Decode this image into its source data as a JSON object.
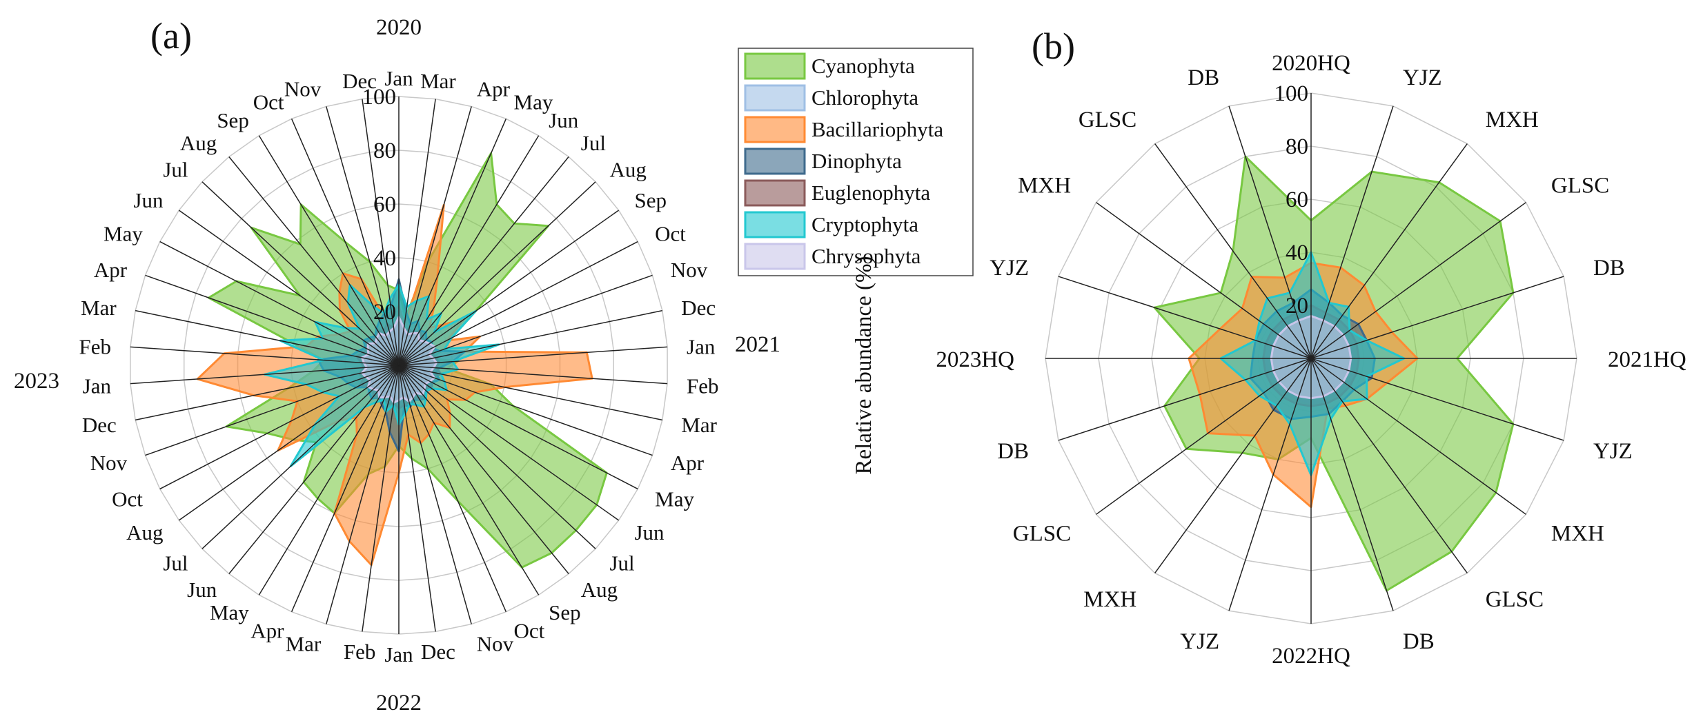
{
  "figure": {
    "ylabel": "Relative abundance (%)",
    "colors": {
      "Cyanophyta": "#78c841",
      "Chlorophyta": "#9fbfe4",
      "Bacillariophyta": "#ff8a33",
      "Dinophyta": "#3e6a8c",
      "Euglenophyta": "#8a5a5a",
      "Cryptophyta": "#22c8d0",
      "Chrysophyta": "#c9c6ea"
    }
  },
  "legend": {
    "items": [
      "Cyanophyta",
      "Chlorophyta",
      "Bacillariophyta",
      "Dinophyta",
      "Euglenophyta",
      "Cryptophyta",
      "Chrysophyta"
    ]
  },
  "chart_data": [
    {
      "type": "radar",
      "title": "(a)",
      "rlim": [
        0,
        100
      ],
      "r_ticks": [
        "20",
        "40",
        "60",
        "80",
        "100"
      ],
      "year_labels": [
        "2020",
        "2021",
        "2022",
        "2023"
      ],
      "categories": [
        "Jan",
        "Mar",
        "Apr",
        "May",
        "Jun",
        "Jul",
        "Aug",
        "Sep",
        "Oct",
        "Nov",
        "Dec",
        "Jan",
        "Feb",
        "Mar",
        "Apr",
        "May",
        "Jun",
        "Jul",
        "Aug",
        "Sep",
        "Oct",
        "Nov",
        "Dec",
        "Jan",
        "Feb",
        "Mar",
        "Apr",
        "May",
        "Jun",
        "Jul",
        "Aug",
        "Oct",
        "Nov",
        "Dec",
        "Jan",
        "Feb",
        "Mar",
        "Apr",
        "May",
        "Jun",
        "Jul",
        "Aug",
        "Sep",
        "Oct",
        "Nov",
        "Dec"
      ],
      "series": [
        {
          "name": "Cyanophyta",
          "values": [
            28,
            18,
            40,
            86,
            70,
            68,
            76,
            35,
            22,
            18,
            12,
            22,
            18,
            35,
            45,
            87,
            90,
            90,
            90,
            88,
            55,
            40,
            35,
            30,
            38,
            42,
            60,
            58,
            56,
            42,
            48,
            55,
            68,
            42,
            32,
            28,
            40,
            75,
            68,
            45,
            75,
            58,
            70,
            50,
            40,
            30
          ]
        },
        {
          "name": "Chlorophyta",
          "values": [
            14,
            12,
            12,
            14,
            13,
            12,
            15,
            14,
            13,
            12,
            12,
            12,
            13,
            14,
            12,
            13,
            14,
            15,
            14,
            13,
            13,
            12,
            13,
            14,
            12,
            14,
            13,
            12,
            14,
            16,
            14,
            13,
            12,
            14,
            12,
            13,
            12,
            14,
            13,
            12,
            13,
            12,
            12,
            13,
            12,
            14
          ]
        },
        {
          "name": "Bacillariophyta",
          "values": [
            22,
            15,
            62,
            36,
            25,
            18,
            22,
            30,
            20,
            32,
            25,
            70,
            72,
            40,
            30,
            28,
            22,
            26,
            30,
            25,
            28,
            30,
            26,
            40,
            75,
            68,
            60,
            30,
            25,
            30,
            55,
            45,
            40,
            55,
            75,
            65,
            35,
            32,
            25,
            22,
            30,
            35,
            40,
            35,
            18,
            20
          ]
        },
        {
          "name": "Dinophyta",
          "values": [
            32,
            20,
            16,
            18,
            15,
            16,
            14,
            15,
            14,
            16,
            25,
            20,
            15,
            14,
            16,
            14,
            15,
            14,
            16,
            15,
            14,
            16,
            15,
            32,
            25,
            18,
            16,
            14,
            16,
            15,
            14,
            18,
            20,
            22,
            28,
            30,
            18,
            16,
            14,
            16,
            15,
            14,
            16,
            18,
            20,
            22
          ]
        },
        {
          "name": "Euglenophyta",
          "values": [
            16,
            13,
            14,
            13,
            15,
            14,
            13,
            14,
            15,
            13,
            14,
            15,
            14,
            16,
            13,
            14,
            15,
            13,
            14,
            15,
            13,
            14,
            15,
            16,
            14,
            15,
            13,
            14,
            15,
            13,
            14,
            16,
            14,
            15,
            13,
            14,
            16,
            14,
            13,
            15,
            14,
            13,
            15,
            14,
            16,
            14
          ]
        },
        {
          "name": "Cryptophyta",
          "values": [
            30,
            22,
            25,
            28,
            20,
            25,
            18,
            35,
            22,
            18,
            38,
            20,
            22,
            16,
            18,
            20,
            15,
            14,
            16,
            18,
            16,
            15,
            18,
            22,
            15,
            18,
            14,
            16,
            20,
            55,
            38,
            25,
            30,
            35,
            50,
            28,
            45,
            30,
            35,
            24,
            20,
            30,
            35,
            24,
            20,
            25
          ]
        },
        {
          "name": "Chrysophyta",
          "values": [
            18,
            14,
            12,
            13,
            14,
            12,
            13,
            14,
            15,
            12,
            13,
            14,
            13,
            12,
            14,
            13,
            12,
            13,
            14,
            12,
            13,
            14,
            12,
            13,
            14,
            12,
            13,
            14,
            12,
            13,
            14,
            12,
            13,
            14,
            12,
            13,
            14,
            12,
            13,
            14,
            12,
            13,
            14,
            12,
            13,
            14
          ]
        }
      ]
    },
    {
      "type": "radar",
      "title": "(b)",
      "rlim": [
        0,
        100
      ],
      "r_ticks": [
        "20",
        "40",
        "60",
        "80",
        "100"
      ],
      "categories": [
        "2020HQ",
        "YJZ",
        "MXH",
        "GLSC",
        "DB",
        "2021HQ",
        "YJZ",
        "MXH",
        "GLSC",
        "DB",
        "2022HQ",
        "YJZ",
        "MXH",
        "GLSC",
        "DB",
        "2023HQ",
        "YJZ",
        "MXH",
        "GLSC",
        "DB"
      ],
      "series": [
        {
          "name": "Cyanophyta",
          "values": [
            52,
            74,
            82,
            88,
            80,
            55,
            80,
            86,
            90,
            92,
            30,
            40,
            44,
            58,
            58,
            42,
            62,
            42,
            50,
            80
          ]
        },
        {
          "name": "Chlorophyta",
          "values": [
            17,
            16,
            16,
            15,
            16,
            16,
            17,
            16,
            16,
            17,
            17,
            16,
            16,
            16,
            17,
            17,
            16,
            16,
            17,
            16
          ]
        },
        {
          "name": "Bacillariophyta",
          "values": [
            36,
            36,
            34,
            30,
            32,
            40,
            30,
            26,
            22,
            20,
            56,
            46,
            36,
            48,
            44,
            46,
            36,
            32,
            38,
            32
          ]
        },
        {
          "name": "Dinophyta",
          "values": [
            26,
            22,
            20,
            22,
            22,
            24,
            24,
            20,
            20,
            22,
            22,
            24,
            24,
            22,
            24,
            22,
            22,
            22,
            22,
            22
          ]
        },
        {
          "name": "Euglenophyta",
          "values": [
            20,
            18,
            18,
            18,
            18,
            18,
            18,
            18,
            18,
            18,
            18,
            18,
            18,
            18,
            18,
            18,
            18,
            18,
            18,
            18
          ]
        },
        {
          "name": "Cryptophyta",
          "values": [
            40,
            22,
            24,
            18,
            22,
            35,
            22,
            26,
            20,
            24,
            44,
            26,
            22,
            24,
            26,
            34,
            22,
            24,
            28,
            26
          ]
        },
        {
          "name": "Chrysophyta",
          "values": [
            16,
            15,
            15,
            15,
            15,
            15,
            15,
            15,
            15,
            15,
            15,
            15,
            15,
            15,
            15,
            15,
            15,
            15,
            15,
            15
          ]
        }
      ]
    }
  ]
}
